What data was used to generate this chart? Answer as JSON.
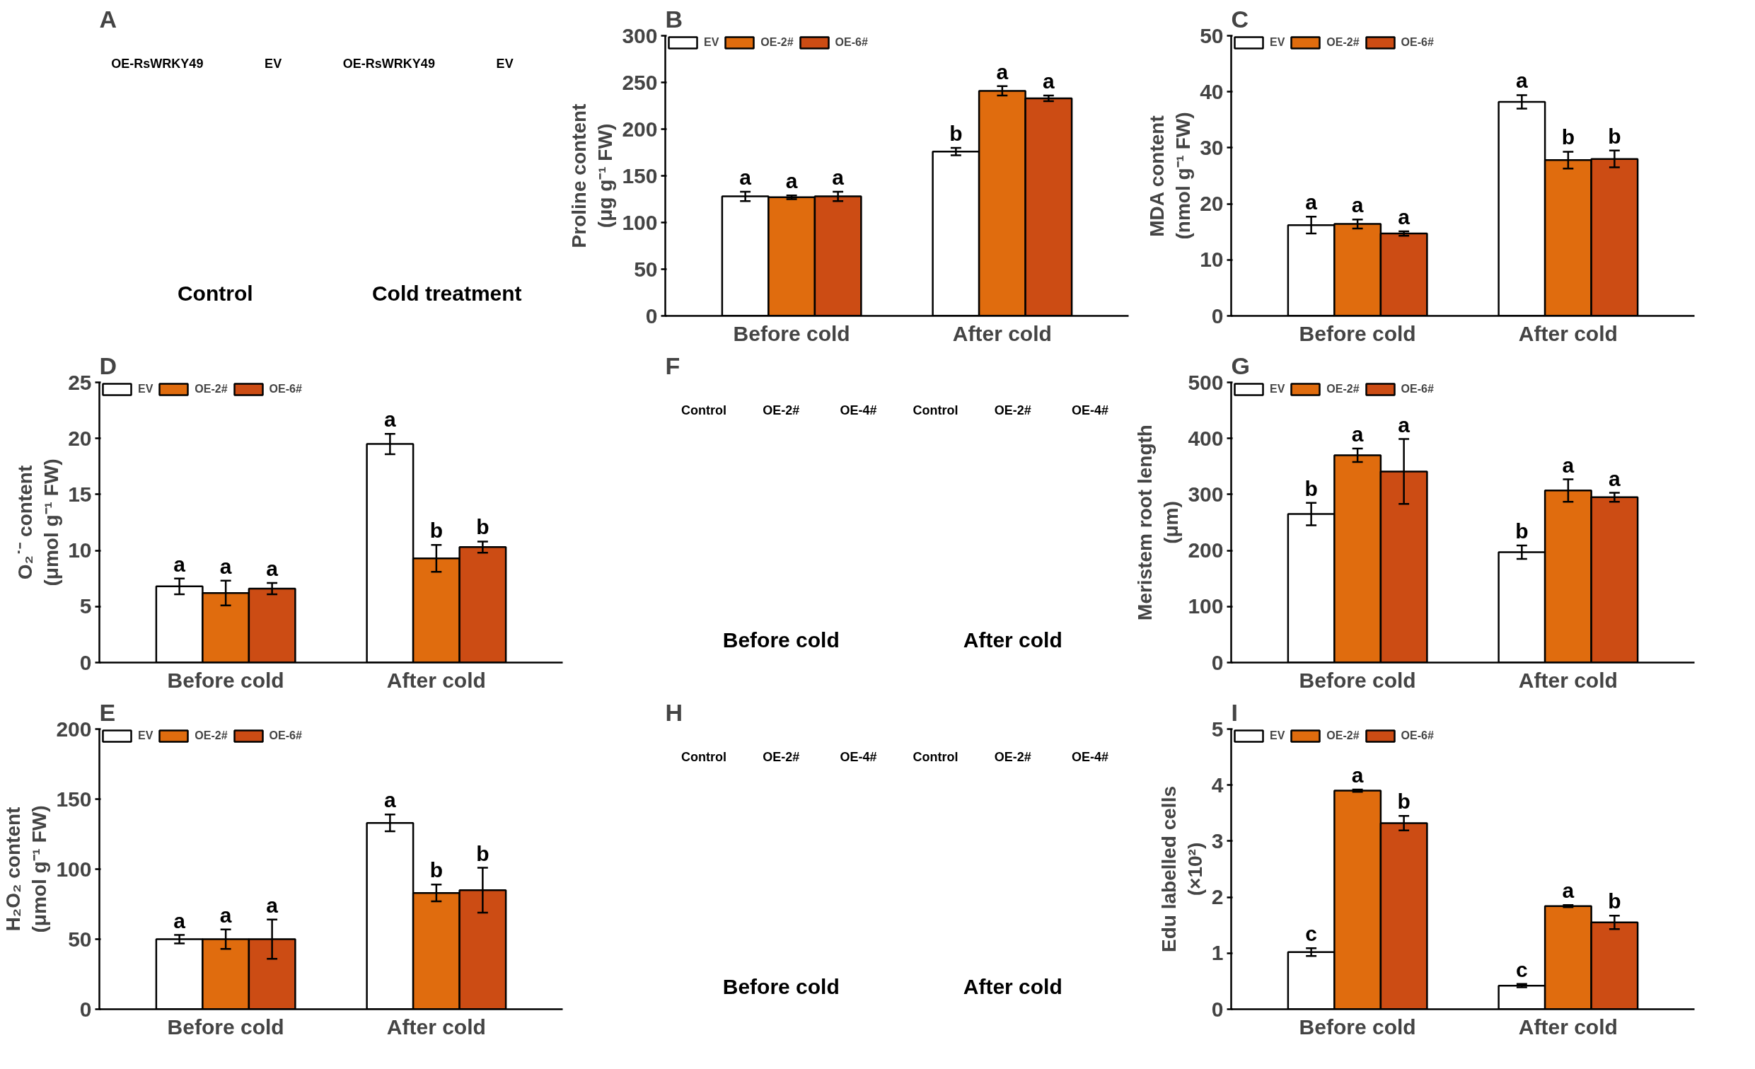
{
  "chart_data": [
    {
      "type": "other",
      "title": "A",
      "annotations": [
        "OE-RsWRKY49",
        "EV",
        "OE-RsWRKY49",
        "EV",
        "Control",
        "Cold treatment"
      ]
    },
    {
      "type": "bar",
      "title": "B",
      "ylabel": "Proline content\n(μg g⁻¹ FW)",
      "categories": [
        "Before cold",
        "After cold"
      ],
      "ylim": [
        0,
        300
      ],
      "yticks": [
        0,
        50,
        100,
        150,
        200,
        250,
        300
      ],
      "legend": "top left",
      "grid": false,
      "series": [
        {
          "name": "EV",
          "color": "#ffffff",
          "values": [
            128,
            176
          ],
          "errors": [
            5,
            4
          ],
          "value_labels": [
            "a",
            "b"
          ]
        },
        {
          "name": "OE-2#",
          "color": "#e06c0e",
          "values": [
            127,
            241
          ],
          "errors": [
            2,
            5
          ],
          "value_labels": [
            "a",
            "a"
          ]
        },
        {
          "name": "OE-6#",
          "color": "#cc4c14",
          "values": [
            128,
            233
          ],
          "errors": [
            5,
            3
          ],
          "value_labels": [
            "a",
            "a"
          ]
        }
      ]
    },
    {
      "type": "bar",
      "title": "C",
      "ylabel": "MDA content\n(nmol g⁻¹ FW)",
      "categories": [
        "Before cold",
        "After cold"
      ],
      "ylim": [
        0,
        50
      ],
      "yticks": [
        0,
        10,
        20,
        30,
        40,
        50
      ],
      "legend": "top left",
      "grid": false,
      "series": [
        {
          "name": "EV",
          "color": "#ffffff",
          "values": [
            16.2,
            38.2
          ],
          "errors": [
            1.5,
            1.2
          ],
          "value_labels": [
            "a",
            "a"
          ]
        },
        {
          "name": "OE-2#",
          "color": "#e06c0e",
          "values": [
            16.4,
            27.8
          ],
          "errors": [
            0.8,
            1.5
          ],
          "value_labels": [
            "a",
            "b"
          ]
        },
        {
          "name": "OE-6#",
          "color": "#cc4c14",
          "values": [
            14.7,
            28.0
          ],
          "errors": [
            0.4,
            1.5
          ],
          "value_labels": [
            "a",
            "b"
          ]
        }
      ]
    },
    {
      "type": "bar",
      "title": "D",
      "ylabel": "O₂˙⁻ content\n(μmol g⁻¹ FW)",
      "categories": [
        "Before cold",
        "After cold"
      ],
      "ylim": [
        0,
        25
      ],
      "yticks": [
        0,
        5,
        10,
        15,
        20,
        25
      ],
      "legend": "top left",
      "grid": false,
      "series": [
        {
          "name": "EV",
          "color": "#ffffff",
          "values": [
            6.8,
            19.5
          ],
          "errors": [
            0.7,
            0.9
          ],
          "value_labels": [
            "a",
            "a"
          ]
        },
        {
          "name": "OE-2#",
          "color": "#e06c0e",
          "values": [
            6.2,
            9.3
          ],
          "errors": [
            1.1,
            1.2
          ],
          "value_labels": [
            "a",
            "b"
          ]
        },
        {
          "name": "OE-6#",
          "color": "#cc4c14",
          "values": [
            6.6,
            10.3
          ],
          "errors": [
            0.5,
            0.5
          ],
          "value_labels": [
            "a",
            "b"
          ]
        }
      ]
    },
    {
      "type": "other",
      "title": "F",
      "annotations": [
        "Control",
        "OE-2#",
        "OE-4#",
        "Control",
        "OE-2#",
        "OE-4#",
        "Before cold",
        "After cold"
      ]
    },
    {
      "type": "bar",
      "title": "G",
      "ylabel": "Meristem root length\n(μm)",
      "categories": [
        "Before cold",
        "After cold"
      ],
      "ylim": [
        0,
        500
      ],
      "yticks": [
        0,
        100,
        200,
        300,
        400,
        500
      ],
      "legend": "top left",
      "grid": false,
      "series": [
        {
          "name": "EV",
          "color": "#ffffff",
          "values": [
            265,
            197
          ],
          "errors": [
            20,
            12
          ],
          "value_labels": [
            "b",
            "b"
          ]
        },
        {
          "name": "OE-2#",
          "color": "#e06c0e",
          "values": [
            370,
            307
          ],
          "errors": [
            12,
            20
          ],
          "value_labels": [
            "a",
            "a"
          ]
        },
        {
          "name": "OE-6#",
          "color": "#cc4c14",
          "values": [
            341,
            295
          ],
          "errors": [
            58,
            8
          ],
          "value_labels": [
            "a",
            "a"
          ]
        }
      ]
    },
    {
      "type": "bar",
      "title": "E",
      "ylabel": "H₂O₂ content\n(μmol g⁻¹ FW)",
      "categories": [
        "Before cold",
        "After cold"
      ],
      "ylim": [
        0,
        200
      ],
      "yticks": [
        0,
        50,
        100,
        150,
        200
      ],
      "legend": "top left",
      "grid": false,
      "series": [
        {
          "name": "EV",
          "color": "#ffffff",
          "values": [
            50,
            133
          ],
          "errors": [
            3,
            6
          ],
          "value_labels": [
            "a",
            "a"
          ]
        },
        {
          "name": "OE-2#",
          "color": "#e06c0e",
          "values": [
            50,
            83
          ],
          "errors": [
            7,
            6
          ],
          "value_labels": [
            "a",
            "b"
          ]
        },
        {
          "name": "OE-6#",
          "color": "#cc4c14",
          "values": [
            50,
            85
          ],
          "errors": [
            14,
            16
          ],
          "value_labels": [
            "a",
            "b"
          ]
        }
      ]
    },
    {
      "type": "other",
      "title": "H",
      "annotations": [
        "Control",
        "OE-2#",
        "OE-4#",
        "Control",
        "OE-2#",
        "OE-4#",
        "Before cold",
        "After cold"
      ]
    },
    {
      "type": "bar",
      "title": "I",
      "ylabel": "Edu labelled cells\n(×10²)",
      "categories": [
        "Before cold",
        "After cold"
      ],
      "ylim": [
        0,
        5
      ],
      "yticks": [
        0,
        1,
        2,
        3,
        4,
        5
      ],
      "legend": "top left",
      "grid": false,
      "series": [
        {
          "name": "EV",
          "color": "#ffffff",
          "values": [
            1.02,
            0.42
          ],
          "errors": [
            0.07,
            0.03
          ],
          "value_labels": [
            "c",
            "c"
          ]
        },
        {
          "name": "OE-2#",
          "color": "#e06c0e",
          "values": [
            3.9,
            1.84
          ],
          "errors": [
            0.02,
            0.02
          ],
          "value_labels": [
            "a",
            "a"
          ]
        },
        {
          "name": "OE-6#",
          "color": "#cc4c14",
          "values": [
            3.32,
            1.55
          ],
          "errors": [
            0.13,
            0.12
          ],
          "value_labels": [
            "b",
            "b"
          ]
        }
      ]
    }
  ]
}
